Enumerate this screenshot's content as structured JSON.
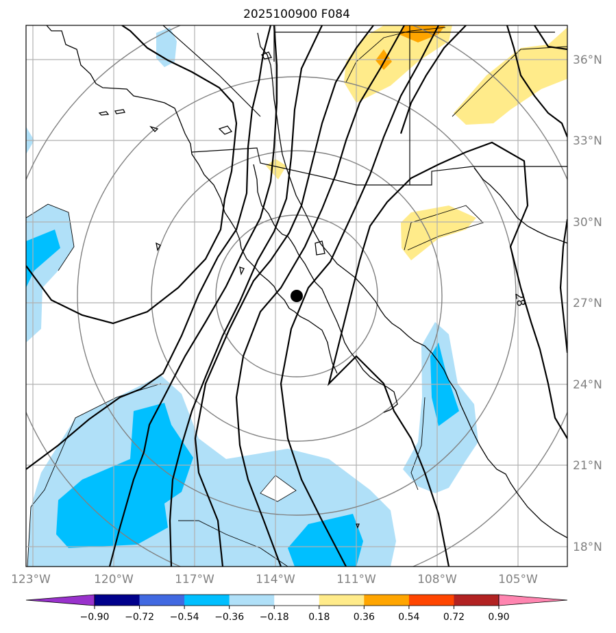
{
  "title": "2025100900 F084",
  "lat_labels": [
    "36°N",
    "33°N",
    "30°N",
    "27°N",
    "24°N",
    "21°N",
    "18°N"
  ],
  "lon_labels": [
    "123°W",
    "120°W",
    "117°W",
    "114°W",
    "111°W",
    "108°W",
    "105°W"
  ],
  "contour_label": "28",
  "colorbar": {
    "ticks": [
      "−0.90",
      "−0.72",
      "−0.54",
      "−0.36",
      "−0.18",
      "0.18",
      "0.36",
      "0.54",
      "0.72",
      "0.90"
    ],
    "colors": [
      "#9932cc",
      "#00008b",
      "#4169e1",
      "#00bfff",
      "#b0e0f8",
      "#ffffff",
      "#ffeb8a",
      "#ffa500",
      "#ff4500",
      "#b22222",
      "#ff85b0"
    ]
  },
  "storm_marker": {
    "lat": 27.2,
    "lon": -113.2
  },
  "colors": {
    "neg_light": "#b0e0f8",
    "neg_mid": "#00bfff",
    "pos_light": "#ffeb8a",
    "pos_mid": "#ffa500",
    "pos_strong": "#ff8c00"
  }
}
